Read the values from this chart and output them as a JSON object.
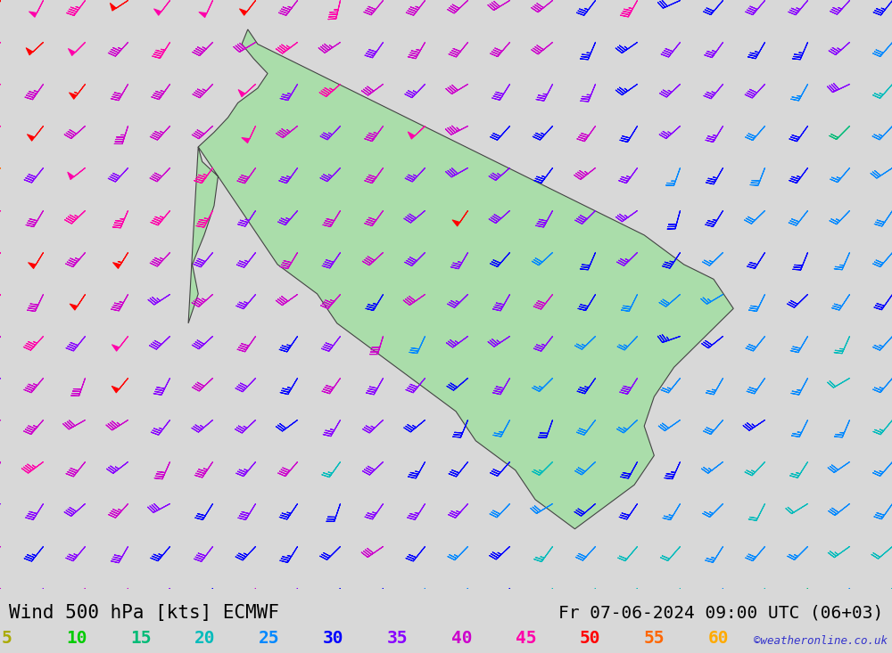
{
  "title_left": "Wind 500 hPa [kts] ECMWF",
  "title_right": "Fr 07-06-2024 09:00 UTC (06+03)",
  "watermark": "©weatheronline.co.uk",
  "legend_values": [
    5,
    10,
    15,
    20,
    25,
    30,
    35,
    40,
    45,
    50,
    55,
    60
  ],
  "legend_colors": [
    "#aaaa00",
    "#00cc00",
    "#00bb77",
    "#00bbbb",
    "#0088ff",
    "#0000ff",
    "#8800ff",
    "#cc00cc",
    "#ff00aa",
    "#ff0000",
    "#ff6600",
    "#ffaa00"
  ],
  "bg_color": "#d8d8d8",
  "land_color": "#aaddaa",
  "border_color": "#444444",
  "sea_color": "#d8d8d8",
  "title_fontsize": 15,
  "legend_fontsize": 14,
  "watermark_color": "#3333cc",
  "title_color": "#000000",
  "lon_min": -5,
  "lon_max": 40,
  "lat_min": 53,
  "lat_max": 73,
  "figwidth": 10.0,
  "figheight": 7.33
}
